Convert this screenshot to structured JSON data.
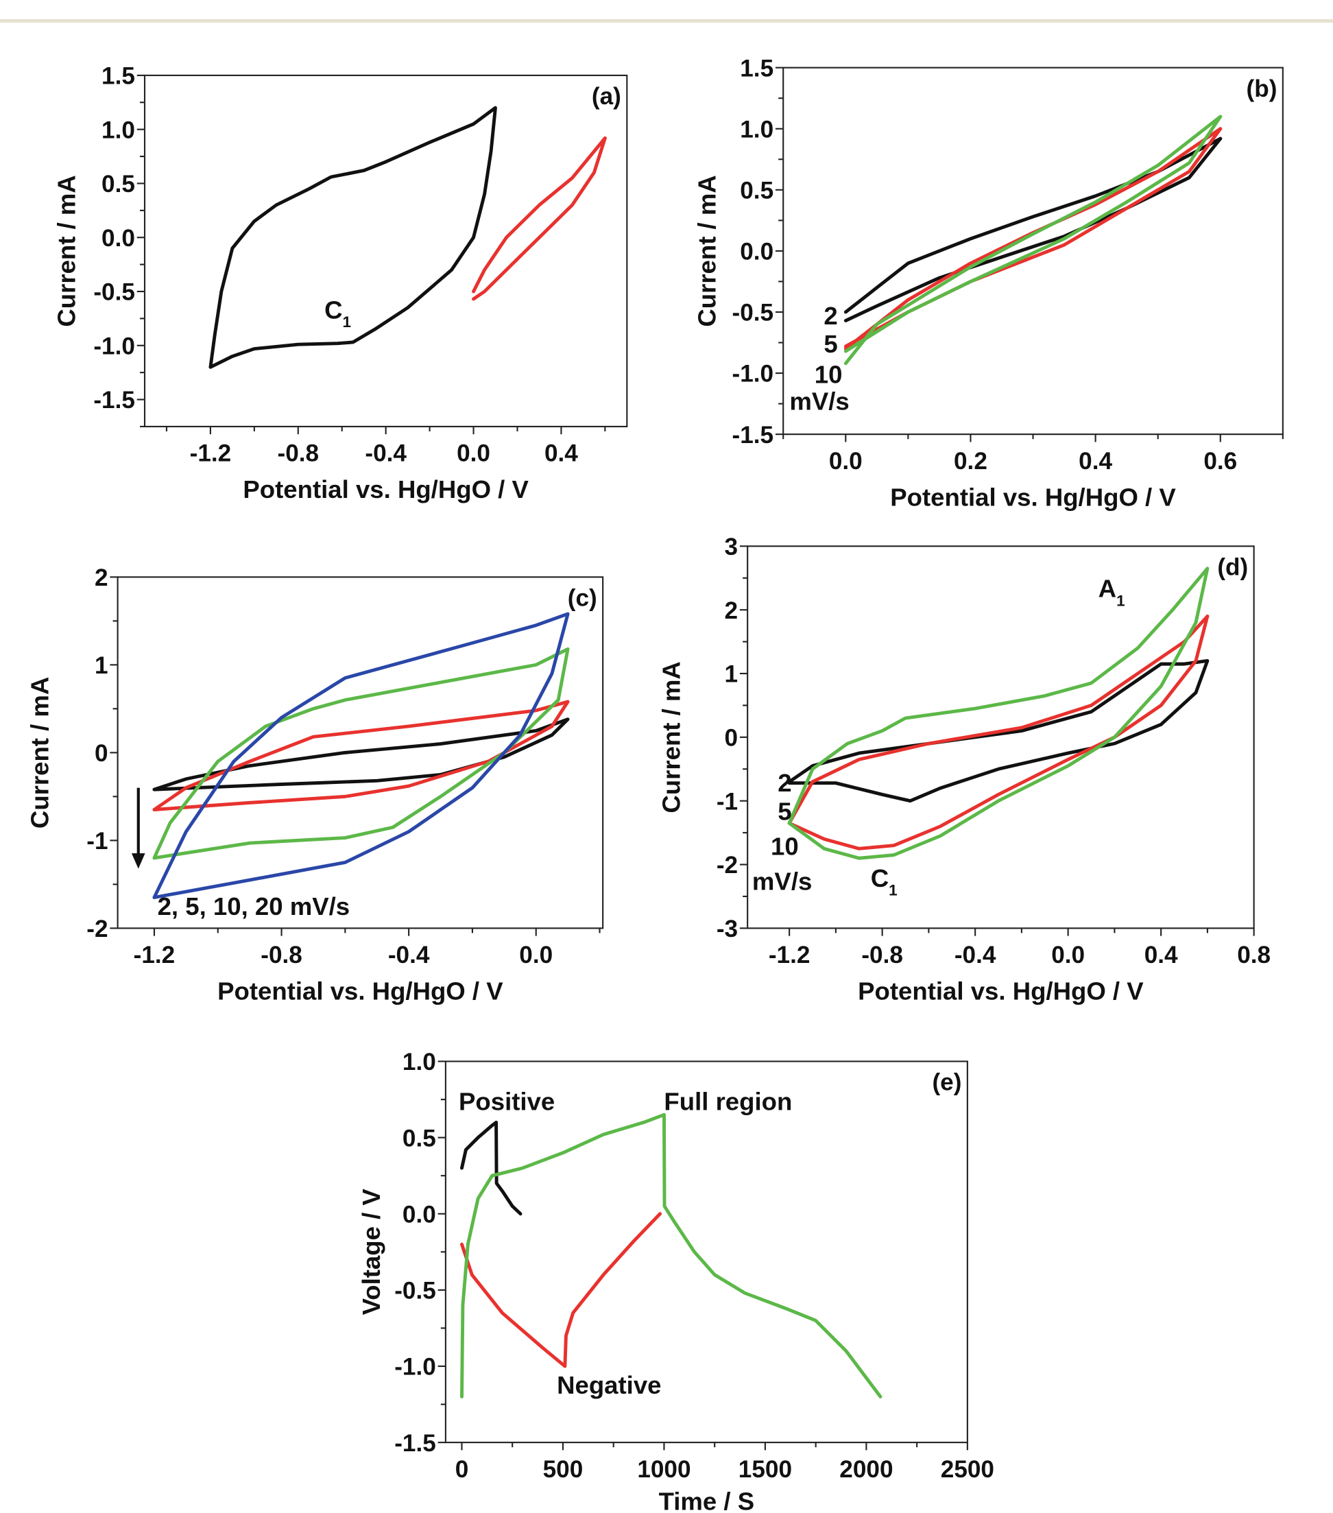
{
  "colors": {
    "black": "#111111",
    "red": "#e8322e",
    "green": "#5cb848",
    "blue": "#2a47a8",
    "frame": "#222222",
    "top_rule": "#e6e0cf"
  },
  "chart_data": [
    {
      "type": "line",
      "panel_label": "(a)",
      "xlabel": "Potential vs. Hg/HgO / V",
      "ylabel": "Current / mA",
      "xlim": [
        -1.5,
        0.7
      ],
      "ylim": [
        -1.75,
        1.5
      ],
      "xticks": [
        -1.2,
        -0.8,
        -0.4,
        0.0,
        0.4
      ],
      "xtick_labels": [
        "-1.2",
        "-0.8",
        "-0.4",
        "0.0",
        "0.4"
      ],
      "yticks": [
        -1.5,
        -1.0,
        -0.5,
        0.0,
        0.5,
        1.0,
        1.5
      ],
      "ytick_labels": [
        "-1.5",
        "-1.0",
        "-0.5",
        "0.0",
        "0.5",
        "1.0",
        "1.5"
      ],
      "grid": false,
      "series": [
        {
          "color": "black",
          "x": [
            -1.2,
            -1.18,
            -1.15,
            -1.1,
            -1.0,
            -0.9,
            -0.75,
            -0.65,
            -0.5,
            -0.4,
            -0.2,
            0.0,
            0.1,
            0.08,
            0.05,
            0.0,
            -0.1,
            -0.3,
            -0.45,
            -0.55,
            -0.62,
            -0.8,
            -1.0,
            -1.1,
            -1.2
          ],
          "y": [
            -1.2,
            -0.9,
            -0.5,
            -0.1,
            0.15,
            0.3,
            0.45,
            0.56,
            0.62,
            0.7,
            0.88,
            1.05,
            1.2,
            0.8,
            0.4,
            0.0,
            -0.3,
            -0.65,
            -0.85,
            -0.97,
            -0.98,
            -0.99,
            -1.03,
            -1.1,
            -1.2
          ]
        },
        {
          "color": "red",
          "x": [
            0.0,
            0.05,
            0.15,
            0.3,
            0.45,
            0.6,
            0.55,
            0.45,
            0.3,
            0.15,
            0.05,
            0.0
          ],
          "y": [
            -0.5,
            -0.3,
            0.0,
            0.3,
            0.55,
            0.92,
            0.6,
            0.3,
            0.0,
            -0.3,
            -0.5,
            -0.57
          ]
        }
      ],
      "annotations": [
        {
          "text": "C",
          "sub": "1",
          "x": -0.68,
          "y": -0.75
        }
      ]
    },
    {
      "type": "line",
      "panel_label": "(b)",
      "xlabel": "Potential vs. Hg/HgO / V",
      "ylabel": "Current / mA",
      "xlim": [
        -0.1,
        0.7
      ],
      "ylim": [
        -1.5,
        1.5
      ],
      "xticks": [
        0.0,
        0.2,
        0.4,
        0.6
      ],
      "xtick_labels": [
        "0.0",
        "0.2",
        "0.4",
        "0.6"
      ],
      "yticks": [
        -1.5,
        -1.0,
        -0.5,
        0.0,
        0.5,
        1.0,
        1.5
      ],
      "ytick_labels": [
        "-1.5",
        "-1.0",
        "-0.5",
        "0.0",
        "0.5",
        "1.0",
        "1.5"
      ],
      "grid": false,
      "series": [
        {
          "color": "black",
          "x": [
            0,
            0.05,
            0.1,
            0.2,
            0.3,
            0.4,
            0.5,
            0.6,
            0.55,
            0.45,
            0.35,
            0.25,
            0.15,
            0.05,
            0
          ],
          "y": [
            -0.5,
            -0.3,
            -0.1,
            0.1,
            0.28,
            0.45,
            0.65,
            0.92,
            0.6,
            0.35,
            0.12,
            -0.05,
            -0.22,
            -0.45,
            -0.57
          ]
        },
        {
          "color": "red",
          "x": [
            0,
            0.1,
            0.2,
            0.3,
            0.4,
            0.5,
            0.6,
            0.55,
            0.45,
            0.35,
            0.2,
            0.1,
            0
          ],
          "y": [
            -0.8,
            -0.4,
            -0.1,
            0.15,
            0.38,
            0.65,
            1.0,
            0.65,
            0.35,
            0.05,
            -0.25,
            -0.5,
            -0.78
          ]
        },
        {
          "color": "green",
          "x": [
            0,
            0.05,
            0.2,
            0.3,
            0.4,
            0.5,
            0.6,
            0.55,
            0.45,
            0.35,
            0.2,
            0.1,
            0
          ],
          "y": [
            -0.92,
            -0.6,
            -0.13,
            0.14,
            0.4,
            0.7,
            1.1,
            0.72,
            0.4,
            0.1,
            -0.25,
            -0.5,
            -0.82
          ]
        }
      ],
      "annotations": [
        {
          "text": "2",
          "x": -0.035,
          "y": -0.6
        },
        {
          "text": "5",
          "x": -0.035,
          "y": -0.83
        },
        {
          "text": "10",
          "x": -0.05,
          "y": -1.08
        },
        {
          "text": "mV/s",
          "x": -0.09,
          "y": -1.3
        }
      ]
    },
    {
      "type": "line",
      "panel_label": "(c)",
      "xlabel": "Potential vs. Hg/HgO / V",
      "ylabel": "Current / mA",
      "xlim": [
        -1.315,
        0.21
      ],
      "ylim": [
        -2,
        2
      ],
      "xticks": [
        -1.2,
        -0.8,
        -0.4,
        0.0
      ],
      "xtick_labels": [
        "-1.2",
        "-0.8",
        "-0.4",
        "0.0"
      ],
      "yticks": [
        -2,
        -1,
        0,
        1,
        2
      ],
      "ytick_labels": [
        "-2",
        "-1",
        "0",
        "1",
        "2"
      ],
      "grid": false,
      "series": [
        {
          "color": "black",
          "x": [
            -1.2,
            -1.1,
            -0.9,
            -0.6,
            -0.3,
            0,
            0.1,
            0.05,
            -0.1,
            -0.3,
            -0.5,
            -0.8,
            -1.2
          ],
          "y": [
            -0.42,
            -0.3,
            -0.15,
            0.0,
            0.1,
            0.25,
            0.38,
            0.2,
            -0.05,
            -0.25,
            -0.32,
            -0.36,
            -0.42
          ]
        },
        {
          "color": "red",
          "x": [
            -1.2,
            -1.1,
            -0.9,
            -0.7,
            -0.4,
            0,
            0.1,
            0.05,
            -0.15,
            -0.4,
            -0.6,
            -0.9,
            -1.2
          ],
          "y": [
            -0.65,
            -0.4,
            -0.1,
            0.18,
            0.3,
            0.48,
            0.58,
            0.3,
            -0.1,
            -0.38,
            -0.5,
            -0.57,
            -0.65
          ]
        },
        {
          "color": "green",
          "x": [
            -1.2,
            -1.15,
            -1.0,
            -0.85,
            -0.7,
            -0.6,
            -0.3,
            0,
            0.1,
            0.07,
            -0.1,
            -0.3,
            -0.45,
            -0.6,
            -0.9,
            -1.2
          ],
          "y": [
            -1.2,
            -0.8,
            -0.1,
            0.3,
            0.5,
            0.6,
            0.8,
            1.0,
            1.18,
            0.6,
            0.0,
            -0.5,
            -0.85,
            -0.97,
            -1.03,
            -1.2
          ]
        },
        {
          "color": "blue",
          "x": [
            -1.2,
            -1.1,
            -0.95,
            -0.8,
            -0.6,
            -0.4,
            -0.2,
            0,
            0.1,
            0.05,
            -0.05,
            -0.2,
            -0.4,
            -0.6,
            -0.9,
            -1.2
          ],
          "y": [
            -1.65,
            -0.9,
            -0.1,
            0.4,
            0.85,
            1.05,
            1.25,
            1.45,
            1.58,
            0.9,
            0.2,
            -0.4,
            -0.9,
            -1.25,
            -1.45,
            -1.65
          ]
        }
      ],
      "arrow": {
        "x": -1.25,
        "y_from": -0.4,
        "y_to": -1.3
      },
      "annotations": [
        {
          "text": "2, 5, 10, 20 mV/s",
          "x": -1.19,
          "y": -1.85
        }
      ]
    },
    {
      "type": "line",
      "panel_label": "(d)",
      "xlabel": "Potential vs. Hg/HgO / V",
      "ylabel": "Current / mA",
      "xlim": [
        -1.38,
        0.8
      ],
      "ylim": [
        -3,
        3
      ],
      "xticks": [
        -1.2,
        -0.8,
        -0.4,
        0.0,
        0.4,
        0.8
      ],
      "xtick_labels": [
        "-1.2",
        "-0.8",
        "-0.4",
        "0.0",
        "0.4",
        "0.8"
      ],
      "yticks": [
        -3,
        -2,
        -1,
        0,
        1,
        2,
        3
      ],
      "ytick_labels": [
        "-3",
        "-2",
        "-1",
        "0",
        "1",
        "2",
        "3"
      ],
      "grid": false,
      "series": [
        {
          "color": "black",
          "x": [
            -1.2,
            -1.1,
            -0.9,
            -0.6,
            -0.2,
            0.1,
            0.3,
            0.4,
            0.5,
            0.6,
            0.55,
            0.4,
            0.2,
            0,
            -0.3,
            -0.55,
            -0.68,
            -0.8,
            -1.0,
            -1.2
          ],
          "y": [
            -0.7,
            -0.45,
            -0.25,
            -0.1,
            0.1,
            0.4,
            0.9,
            1.15,
            1.15,
            1.2,
            0.7,
            0.2,
            -0.1,
            -0.25,
            -0.5,
            -0.8,
            -1.0,
            -0.9,
            -0.72,
            -0.72
          ]
        },
        {
          "color": "red",
          "x": [
            -1.2,
            -1.1,
            -0.9,
            -0.6,
            -0.2,
            0.1,
            0.3,
            0.5,
            0.6,
            0.55,
            0.4,
            0.2,
            0,
            -0.3,
            -0.55,
            -0.75,
            -0.9,
            -1.05,
            -1.2
          ],
          "y": [
            -1.35,
            -0.7,
            -0.35,
            -0.1,
            0.15,
            0.5,
            1.0,
            1.5,
            1.9,
            1.2,
            0.5,
            0.0,
            -0.35,
            -0.9,
            -1.4,
            -1.7,
            -1.75,
            -1.6,
            -1.35
          ]
        },
        {
          "color": "green",
          "x": [
            -1.2,
            -1.1,
            -0.95,
            -0.8,
            -0.7,
            -0.4,
            -0.1,
            0.1,
            0.3,
            0.45,
            0.6,
            0.55,
            0.4,
            0.2,
            0,
            -0.3,
            -0.55,
            -0.75,
            -0.9,
            -1.05,
            -1.2
          ],
          "y": [
            -1.35,
            -0.5,
            -0.1,
            0.1,
            0.3,
            0.45,
            0.65,
            0.85,
            1.4,
            2.0,
            2.65,
            1.8,
            0.8,
            0.0,
            -0.45,
            -1.0,
            -1.55,
            -1.85,
            -1.9,
            -1.75,
            -1.35
          ]
        }
      ],
      "annotations": [
        {
          "text": "2",
          "x": -1.25,
          "y": -0.85
        },
        {
          "text": "5",
          "x": -1.25,
          "y": -1.3
        },
        {
          "text": "10",
          "x": -1.28,
          "y": -1.85
        },
        {
          "text": "mV/s",
          "x": -1.36,
          "y": -2.4
        },
        {
          "text": "C",
          "sub": "1",
          "x": -0.85,
          "y": -2.35
        },
        {
          "text": "A",
          "sub": "1",
          "x": 0.13,
          "y": 2.2
        }
      ]
    },
    {
      "type": "line",
      "panel_label": "(e)",
      "xlabel": "Time / S",
      "ylabel": "Voltage / V",
      "xlim": [
        -80,
        2500
      ],
      "ylim": [
        -1.5,
        1.0
      ],
      "xticks": [
        0,
        500,
        1000,
        1500,
        2000,
        2500
      ],
      "xtick_labels": [
        "0",
        "500",
        "1000",
        "1500",
        "2000",
        "2500"
      ],
      "yticks": [
        -1.5,
        -1.0,
        -0.5,
        0.0,
        0.5,
        1.0
      ],
      "ytick_labels": [
        "-1.5",
        "-1.0",
        "-0.5",
        "0.0",
        "0.5",
        "1.0"
      ],
      "grid": false,
      "series": [
        {
          "color": "black",
          "x": [
            0,
            20,
            80,
            150,
            170,
            172,
            200,
            250,
            290
          ],
          "y": [
            0.3,
            0.42,
            0.5,
            0.58,
            0.6,
            0.2,
            0.15,
            0.05,
            0.0
          ]
        },
        {
          "color": "red",
          "x": [
            0,
            50,
            200,
            400,
            510,
            515,
            550,
            700,
            850,
            980
          ],
          "y": [
            -0.2,
            -0.4,
            -0.65,
            -0.88,
            -1.0,
            -0.8,
            -0.65,
            -0.4,
            -0.18,
            0.0
          ]
        },
        {
          "color": "green",
          "x": [
            0,
            5,
            30,
            80,
            150,
            300,
            500,
            700,
            900,
            1000,
            1002,
            1050,
            1150,
            1250,
            1400,
            1600,
            1750,
            1900,
            2070
          ],
          "y": [
            -1.2,
            -0.6,
            -0.2,
            0.1,
            0.25,
            0.3,
            0.4,
            0.52,
            0.6,
            0.65,
            0.05,
            -0.05,
            -0.25,
            -0.4,
            -0.52,
            -0.62,
            -0.7,
            -0.9,
            -1.2
          ]
        }
      ],
      "annotations": [
        {
          "text": "Positive",
          "x": -15,
          "y": 0.68
        },
        {
          "text": "Full region",
          "x": 1000,
          "y": 0.68
        },
        {
          "text": "Negative",
          "x": 470,
          "y": -1.18
        }
      ]
    }
  ]
}
